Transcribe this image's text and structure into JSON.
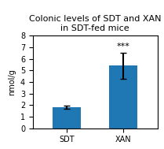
{
  "chart_data": {
    "type": "bar",
    "title": "Colonic levels of SDT and XAN in SDT-fed mice",
    "categories": [
      "SDT",
      "XAN"
    ],
    "values": [
      1.8,
      5.4
    ],
    "errors": [
      0.12,
      1.15
    ],
    "ylabel": "nmol/g",
    "ylim": [
      0,
      8
    ],
    "yticks": [
      0,
      1,
      2,
      3,
      4,
      5,
      6,
      7,
      8
    ],
    "annotations": [
      {
        "text": "***",
        "category": "XAN"
      }
    ],
    "grid": false
  }
}
